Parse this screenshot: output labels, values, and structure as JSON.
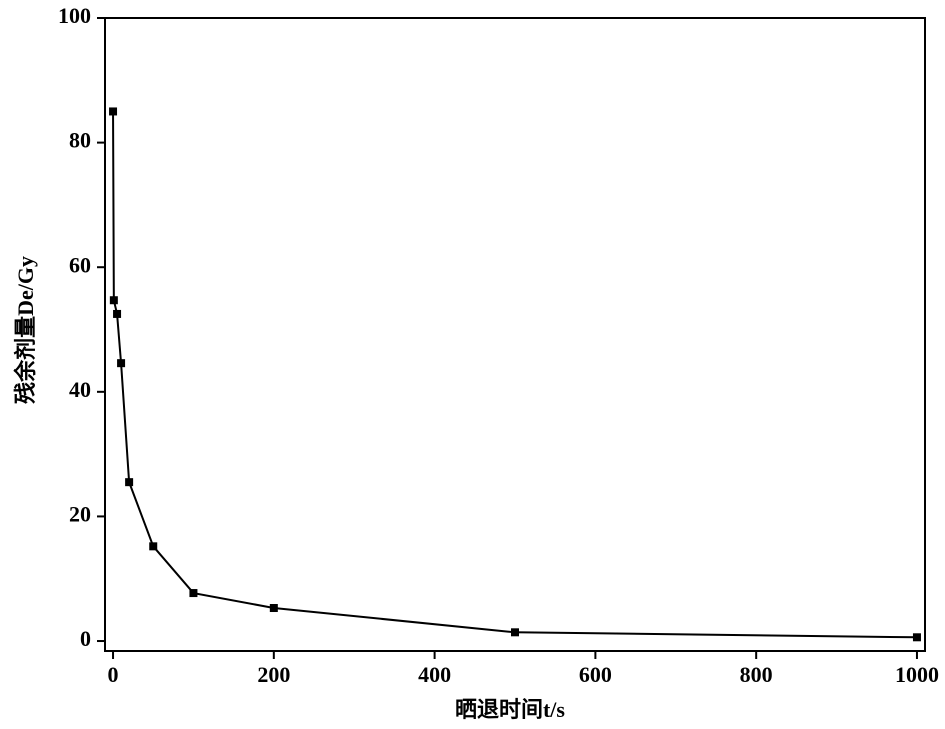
{
  "chart_data": {
    "type": "line",
    "xlabel": "晒退时间t/s",
    "ylabel": "残余剂量De/Gy",
    "x": [
      0,
      1,
      5,
      10,
      20,
      50,
      100,
      200,
      500,
      1000
    ],
    "series": [
      {
        "color": "#000000",
        "values": [
          85,
          54.7,
          52.5,
          44.6,
          25.5,
          15.2,
          7.7,
          5.3,
          1.4,
          0.6
        ]
      }
    ],
    "xlim": [
      -10,
      1010
    ],
    "ylim": [
      -1.6,
      100
    ],
    "xticks": [
      0,
      200,
      400,
      600,
      800,
      1000
    ],
    "yticks": [
      0,
      20,
      40,
      60,
      80,
      100
    ]
  }
}
